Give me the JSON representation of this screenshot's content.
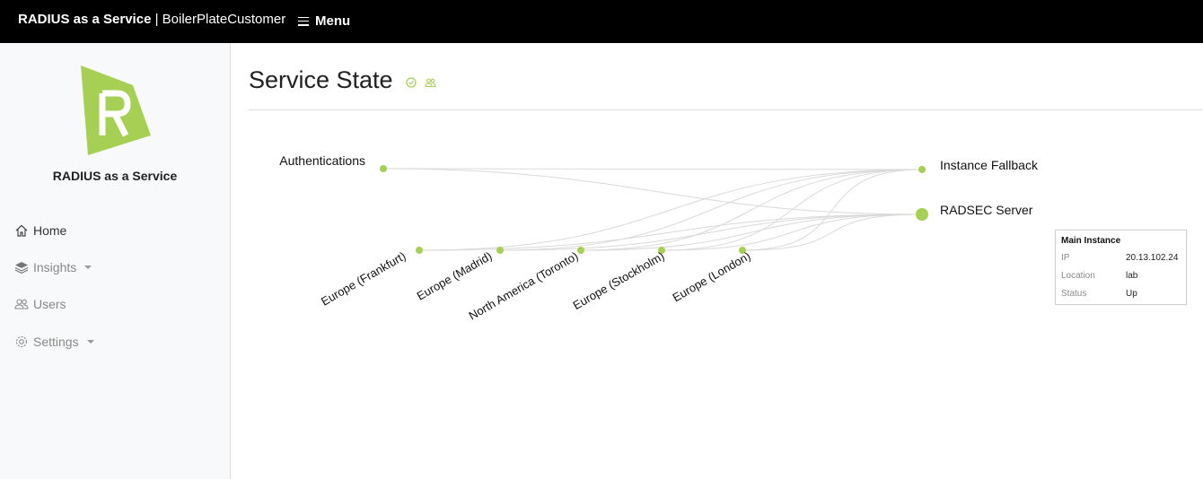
{
  "header": {
    "brand_bold": "RADIUS as a Service",
    "brand_rest": " | BoilerPlateCustomer",
    "menu_label": "Menu"
  },
  "sidebar": {
    "title": "RADIUS as a Service",
    "items": [
      {
        "label": "Home",
        "icon": "home-icon"
      },
      {
        "label": "Insights",
        "icon": "layers-icon"
      },
      {
        "label": "Users",
        "icon": "users-icon"
      },
      {
        "label": "Settings",
        "icon": "gear-icon"
      }
    ]
  },
  "main": {
    "title": "Service State"
  },
  "graph": {
    "nodes": {
      "authentications": "Authentications",
      "instance_fallback": "Instance Fallback",
      "radsec_server": "RADSEC Server",
      "frankfurt": "Europe (Frankfurt)",
      "madrid": "Europe (Madrid)",
      "toronto": "North America (Toronto)",
      "stockholm": "Europe (Stockholm)",
      "london": "Europe (London)"
    }
  },
  "info_box": {
    "title": "Main Instance",
    "rows": [
      {
        "key": "IP",
        "value": "20.13.102.24"
      },
      {
        "key": "Location",
        "value": "lab"
      },
      {
        "key": "Status",
        "value": "Up"
      }
    ]
  },
  "colors": {
    "accent": "#a6d054",
    "edge": "#d9d9d9",
    "topbar": "#000000"
  }
}
